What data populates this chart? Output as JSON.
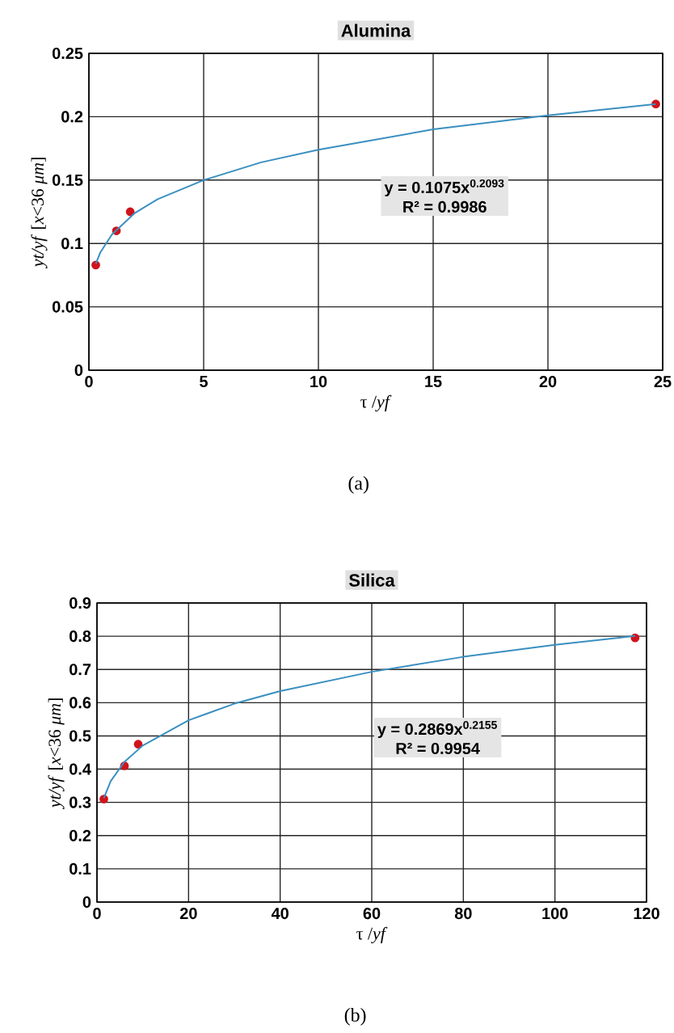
{
  "chart_data": [
    {
      "type": "scatter",
      "title": "Alumina",
      "xlabel": "τ /*yf*",
      "ylabel": "*yt/yf* [*x*<36 *μm*]",
      "xlim": [
        0,
        25
      ],
      "ylim": [
        0,
        0.25
      ],
      "xticks": [
        0,
        5,
        10,
        15,
        20,
        25
      ],
      "yticks": [
        0,
        0.05,
        0.1,
        0.15,
        0.2,
        0.25
      ],
      "grid": true,
      "annotations": [
        "y = 0.1075x$^{0.2093}$",
        "R² = 0.9986",
        "(a)"
      ],
      "series": [
        {
          "color": "#d0141c",
          "marker": "circle",
          "x": [
            0.3,
            1.2,
            1.8,
            24.7
          ],
          "values": [
            0.083,
            0.11,
            0.125,
            0.21
          ]
        },
        {
          "type": "line",
          "color": "#3a8fc0",
          "marker": "none",
          "line_style": "solid",
          "x": [
            0.3,
            0.5,
            1,
            2,
            3,
            5,
            7.5,
            10,
            15,
            20,
            24.7
          ],
          "values": [
            0.084,
            0.093,
            0.107,
            0.124,
            0.135,
            0.15,
            0.164,
            0.174,
            0.19,
            0.201,
            0.21
          ]
        }
      ]
    },
    {
      "type": "scatter",
      "title": "Silica",
      "xlabel": "τ /*yf*",
      "ylabel": "*yt/yf* [*x*<36 *μm*]",
      "xlim": [
        0,
        120
      ],
      "ylim": [
        0,
        0.9
      ],
      "xticks": [
        0,
        20,
        40,
        60,
        80,
        100,
        120
      ],
      "yticks": [
        0,
        0.1,
        0.2,
        0.3,
        0.4,
        0.5,
        0.6,
        0.7,
        0.8,
        0.9
      ],
      "grid": true,
      "annotations": [
        "y = 0.2869x$^{0.2155}$",
        "R² = 0.9954",
        "(b)"
      ],
      "series": [
        {
          "color": "#d0141c",
          "marker": "circle",
          "x": [
            1.5,
            6,
            9,
            117.5
          ],
          "values": [
            0.31,
            0.41,
            0.475,
            0.795
          ]
        },
        {
          "type": "line",
          "color": "#3a8fc0",
          "marker": "none",
          "line_style": "solid",
          "x": [
            1.5,
            3,
            6,
            10,
            20,
            30,
            40,
            60,
            80,
            100,
            117.5
          ],
          "values": [
            0.313,
            0.364,
            0.422,
            0.471,
            0.547,
            0.597,
            0.635,
            0.693,
            0.738,
            0.774,
            0.801
          ]
        }
      ]
    }
  ]
}
